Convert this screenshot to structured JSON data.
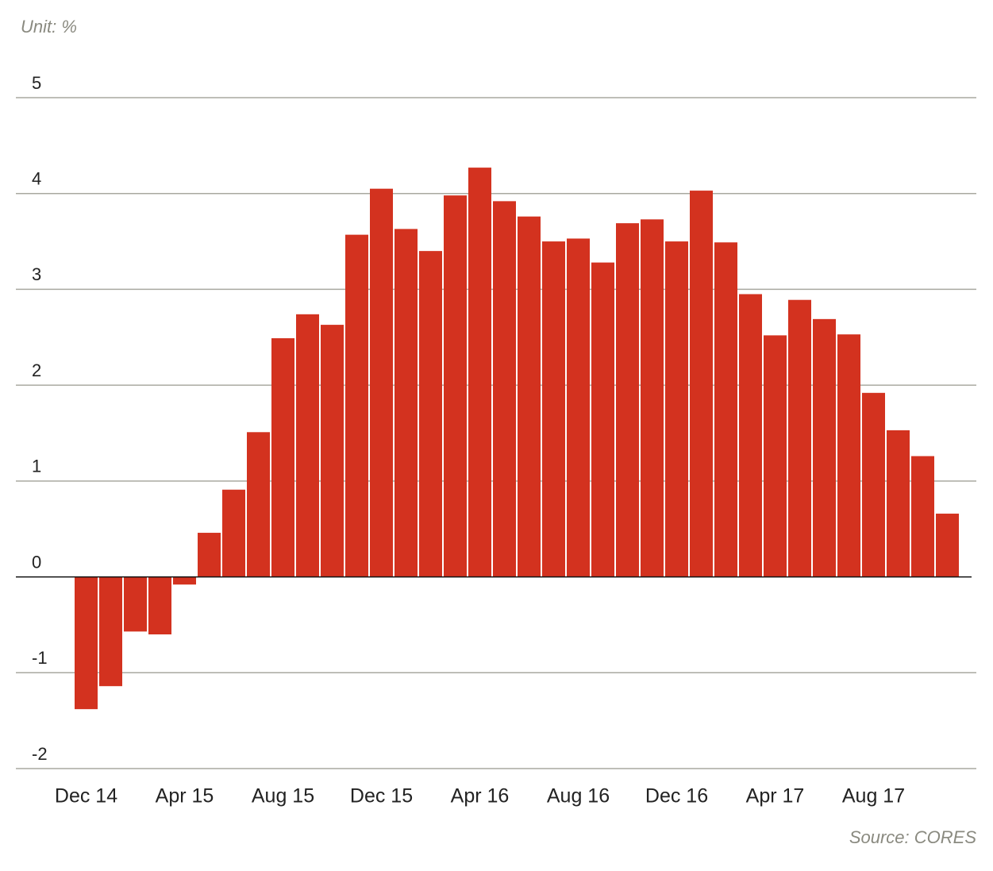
{
  "chart_data": {
    "type": "bar",
    "unit_label": "Unit: %",
    "source": "Source: CORES",
    "categories": [
      "Dec 14",
      null,
      null,
      null,
      "Apr 15",
      null,
      null,
      null,
      "Aug 15",
      null,
      null,
      null,
      "Dec 15",
      null,
      null,
      null,
      "Apr 16",
      null,
      null,
      null,
      "Aug 16",
      null,
      null,
      null,
      "Dec 16",
      null,
      null,
      null,
      "Apr 17",
      null,
      null,
      null,
      "Aug 17",
      null,
      null,
      null
    ],
    "values": [
      -1.38,
      -1.14,
      -0.57,
      -0.6,
      -0.08,
      0.46,
      0.91,
      1.51,
      2.49,
      2.74,
      2.63,
      3.57,
      4.05,
      3.63,
      3.4,
      3.98,
      4.27,
      3.92,
      3.76,
      3.5,
      3.53,
      3.28,
      3.69,
      3.73,
      3.5,
      4.03,
      3.49,
      2.95,
      2.52,
      2.89,
      2.69,
      2.53,
      1.92,
      1.53,
      1.26,
      0.66
    ],
    "color": "#d3321f",
    "ylim": [
      -2,
      5
    ],
    "yticks": [
      -2,
      -1,
      0,
      1,
      2,
      3,
      4,
      5
    ],
    "grid": true
  }
}
